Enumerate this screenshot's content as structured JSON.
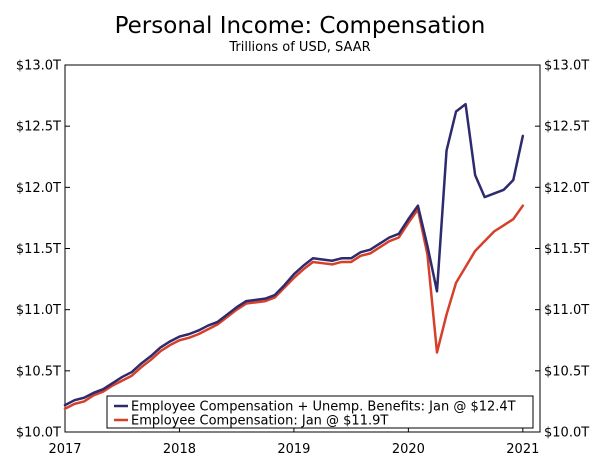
{
  "chart_data": {
    "type": "line",
    "title": "Personal Income: Compensation",
    "subtitle": "Trillions of USD, SAAR",
    "xlabel": "",
    "ylabel": "",
    "xlim": [
      2017.0,
      2021.15
    ],
    "ylim": [
      10.0,
      13.0
    ],
    "x_ticks": [
      2017,
      2018,
      2019,
      2020,
      2021
    ],
    "x_tick_labels": [
      "2017",
      "2018",
      "2019",
      "2020",
      "2021"
    ],
    "y_ticks": [
      10.0,
      10.5,
      11.0,
      11.5,
      12.0,
      12.5,
      13.0
    ],
    "y_tick_labels": [
      "$10.0T",
      "$10.5T",
      "$11.0T",
      "$11.5T",
      "$12.0T",
      "$12.5T",
      "$13.0T"
    ],
    "y_tick_labels_right": [
      "$10.0T",
      "$10.5T",
      "$11.0T",
      "$11.5T",
      "$12.0T",
      "$12.5T",
      "$13.0T"
    ],
    "grid": false,
    "legend_position": "bottom-left",
    "x": [
      "2017-01",
      "2017-02",
      "2017-03",
      "2017-04",
      "2017-05",
      "2017-06",
      "2017-07",
      "2017-08",
      "2017-09",
      "2017-10",
      "2017-11",
      "2017-12",
      "2018-01",
      "2018-02",
      "2018-03",
      "2018-04",
      "2018-05",
      "2018-06",
      "2018-07",
      "2018-08",
      "2018-09",
      "2018-10",
      "2018-11",
      "2018-12",
      "2019-01",
      "2019-02",
      "2019-03",
      "2019-04",
      "2019-05",
      "2019-06",
      "2019-07",
      "2019-08",
      "2019-09",
      "2019-10",
      "2019-11",
      "2019-12",
      "2020-01",
      "2020-02",
      "2020-03",
      "2020-04",
      "2020-05",
      "2020-06",
      "2020-07",
      "2020-08",
      "2020-09",
      "2020-10",
      "2020-11",
      "2020-12",
      "2021-01"
    ],
    "series": [
      {
        "name": "Employee Compensation + Unemp. Benefits: Jan @ $12.4T",
        "color": "#2e2a6e",
        "values": [
          10.22,
          10.26,
          10.28,
          10.32,
          10.35,
          10.4,
          10.45,
          10.49,
          10.56,
          10.62,
          10.69,
          10.74,
          10.78,
          10.8,
          10.83,
          10.87,
          10.9,
          10.96,
          11.02,
          11.07,
          11.08,
          11.09,
          11.12,
          11.2,
          11.29,
          11.36,
          11.42,
          11.41,
          11.4,
          11.42,
          11.42,
          11.47,
          11.49,
          11.54,
          11.59,
          11.62,
          11.74,
          11.85,
          11.52,
          11.15,
          12.3,
          12.62,
          12.68,
          12.1,
          11.92,
          11.95,
          11.98,
          12.06,
          12.42
        ]
      },
      {
        "name": "Employee Compensation: Jan @ $11.9T",
        "color": "#d6402b",
        "values": [
          10.19,
          10.23,
          10.25,
          10.3,
          10.33,
          10.38,
          10.42,
          10.46,
          10.53,
          10.59,
          10.66,
          10.71,
          10.75,
          10.77,
          10.8,
          10.84,
          10.88,
          10.94,
          11.0,
          11.05,
          11.06,
          11.07,
          11.1,
          11.18,
          11.26,
          11.33,
          11.39,
          11.38,
          11.37,
          11.39,
          11.39,
          11.44,
          11.46,
          11.51,
          11.56,
          11.59,
          11.71,
          11.82,
          11.45,
          10.65,
          10.96,
          11.22,
          11.35,
          11.48,
          11.56,
          11.64,
          11.69,
          11.74,
          11.85
        ]
      }
    ]
  }
}
